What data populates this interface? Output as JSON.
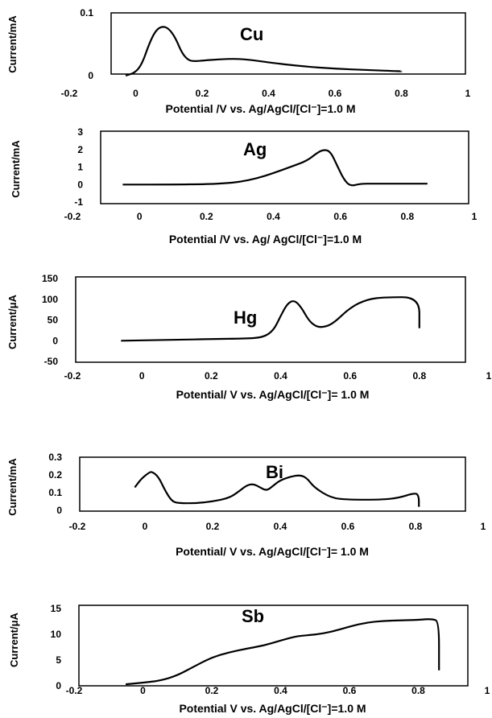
{
  "chart_data": [
    {
      "type": "line",
      "title": "",
      "annotation": "Cu",
      "xlabel": "Potential /V vs. Ag/AgCl/[Cl⁻]=1.0 M",
      "ylabel": "Current/mA",
      "xlim": [
        -0.2,
        1
      ],
      "ylim": [
        0,
        0.1
      ],
      "x_ticks": [
        "-0.2",
        "0",
        "0.2",
        "0.4",
        "0.6",
        "0.8",
        "1"
      ],
      "y_ticks": [
        "0",
        "0.1"
      ],
      "series": [
        {
          "x": [
            -0.03,
            0.0,
            0.02,
            0.04,
            0.06,
            0.08,
            0.1,
            0.12,
            0.14,
            0.16,
            0.18,
            0.2,
            0.25,
            0.3,
            0.35,
            0.4,
            0.5,
            0.6,
            0.7,
            0.8
          ],
          "y": [
            0.0,
            0.005,
            0.02,
            0.05,
            0.072,
            0.079,
            0.075,
            0.06,
            0.035,
            0.024,
            0.023,
            0.024,
            0.026,
            0.027,
            0.025,
            0.021,
            0.015,
            0.011,
            0.009,
            0.007
          ]
        }
      ]
    },
    {
      "type": "line",
      "title": "",
      "annotation": "Ag",
      "xlabel": "Potential /V vs. Ag/ AgCl/[Cl⁻]=1.0 M",
      "ylabel": "Current/mA",
      "xlim": [
        -0.2,
        1
      ],
      "ylim": [
        -1,
        3
      ],
      "x_ticks": [
        "-0.2",
        "0",
        "0.2",
        "0.4",
        "0.6",
        "0.8",
        "1"
      ],
      "y_ticks": [
        "-1",
        "0",
        "1",
        "2",
        "3"
      ],
      "series": [
        {
          "x": [
            -0.05,
            0.1,
            0.2,
            0.25,
            0.3,
            0.35,
            0.4,
            0.45,
            0.5,
            0.53,
            0.55,
            0.57,
            0.59,
            0.61,
            0.63,
            0.66,
            0.7,
            0.86
          ],
          "y": [
            0.0,
            0.0,
            0.02,
            0.06,
            0.15,
            0.35,
            0.65,
            1.0,
            1.35,
            1.8,
            2.0,
            1.9,
            1.1,
            0.3,
            -0.1,
            0.05,
            0.05,
            0.05
          ]
        }
      ]
    },
    {
      "type": "line",
      "title": "",
      "annotation": "Hg",
      "xlabel": "Potential/ V vs.  Ag/AgCl/[Cl⁻]= 1.0 M",
      "ylabel": "Current/μA",
      "xlim": [
        -0.2,
        1
      ],
      "ylim": [
        -50,
        150
      ],
      "x_ticks": [
        "-0.2",
        "0",
        "0.2",
        "0.4",
        "0.6",
        "0.8",
        "1"
      ],
      "y_ticks": [
        "-50",
        "0",
        "50",
        "100",
        "150"
      ],
      "series": [
        {
          "x": [
            -0.06,
            0.1,
            0.2,
            0.3,
            0.35,
            0.38,
            0.4,
            0.42,
            0.44,
            0.46,
            0.48,
            0.5,
            0.52,
            0.55,
            0.6,
            0.65,
            0.7,
            0.8,
            0.8
          ],
          "y": [
            0,
            2,
            4,
            5,
            8,
            25,
            60,
            90,
            98,
            80,
            50,
            35,
            32,
            40,
            80,
            100,
            105,
            105,
            30
          ]
        }
      ]
    },
    {
      "type": "line",
      "title": "",
      "annotation": "Bi",
      "xlabel": "Potential/ V vs. Ag/AgCl/[Cl⁻]= 1.0 M",
      "ylabel": "Current/mA",
      "xlim": [
        -0.2,
        1
      ],
      "ylim": [
        0,
        0.3
      ],
      "x_ticks": [
        "-0.2",
        "0",
        "0.2",
        "0.4",
        "0.6",
        "0.8",
        "1"
      ],
      "y_ticks": [
        "0",
        "0.1",
        "0.2",
        "0.3"
      ],
      "series": [
        {
          "x": [
            -0.03,
            -0.01,
            0.01,
            0.02,
            0.04,
            0.06,
            0.08,
            0.1,
            0.15,
            0.2,
            0.25,
            0.28,
            0.3,
            0.32,
            0.34,
            0.36,
            0.38,
            0.4,
            0.43,
            0.46,
            0.48,
            0.5,
            0.55,
            0.6,
            0.7,
            0.75,
            0.8,
            0.81,
            0.81
          ],
          "y": [
            0.13,
            0.18,
            0.21,
            0.22,
            0.19,
            0.11,
            0.05,
            0.04,
            0.04,
            0.05,
            0.07,
            0.11,
            0.14,
            0.15,
            0.13,
            0.11,
            0.14,
            0.17,
            0.19,
            0.2,
            0.18,
            0.13,
            0.07,
            0.06,
            0.06,
            0.07,
            0.1,
            0.08,
            0.02
          ]
        }
      ]
    },
    {
      "type": "line",
      "title": "",
      "annotation": "Sb",
      "xlabel": "Potential V vs. Ag/AgCl/[Cl⁻]=1.0 M",
      "ylabel": "Current/μA",
      "xlim": [
        -0.2,
        1
      ],
      "ylim": [
        0,
        15
      ],
      "x_ticks": [
        "-0.2",
        "0",
        "0.2",
        "0.4",
        "0.6",
        "0.8",
        "1"
      ],
      "y_ticks": [
        "0",
        "5",
        "10",
        "15"
      ],
      "series": [
        {
          "x": [
            -0.05,
            0.0,
            0.05,
            0.1,
            0.15,
            0.2,
            0.25,
            0.3,
            0.35,
            0.4,
            0.45,
            0.5,
            0.55,
            0.6,
            0.65,
            0.7,
            0.75,
            0.8,
            0.84,
            0.86,
            0.86
          ],
          "y": [
            0.3,
            0.6,
            1.0,
            2.0,
            3.8,
            5.5,
            6.5,
            7.2,
            7.8,
            8.8,
            9.7,
            9.9,
            10.5,
            11.5,
            12.3,
            12.6,
            12.7,
            12.8,
            13.0,
            12.5,
            3.0
          ]
        }
      ]
    }
  ]
}
